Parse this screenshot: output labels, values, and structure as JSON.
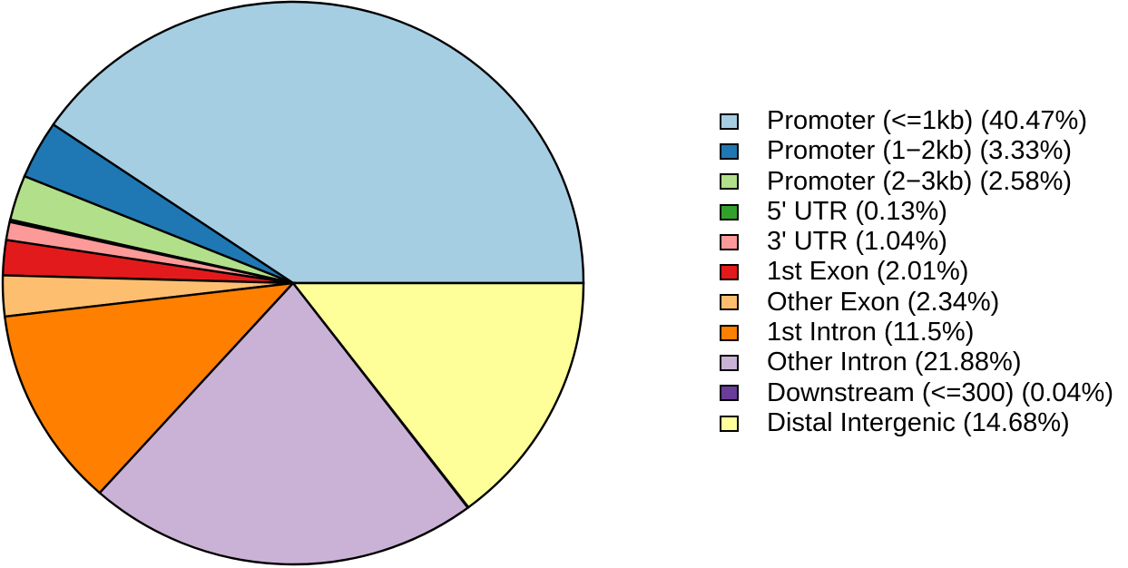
{
  "page": {
    "background": "#FFFFFF"
  },
  "chart_data": {
    "type": "pie",
    "title": "",
    "start_angle_deg": 0,
    "direction": "counterclockwise",
    "legend_position": "right",
    "grid": false,
    "border_color": "#000000",
    "slices": [
      {
        "label": "Promoter (<=1kb)",
        "value": 40.47,
        "color": "#A6CEE3",
        "legend_label": "Promoter (<=1kb) (40.47%)"
      },
      {
        "label": "Promoter (1−2kb)",
        "value": 3.33,
        "color": "#1F78B4",
        "legend_label": "Promoter (1−2kb) (3.33%)"
      },
      {
        "label": "Promoter (2−3kb)",
        "value": 2.58,
        "color": "#B2DF8A",
        "legend_label": "Promoter (2−3kb) (2.58%)"
      },
      {
        "label": "5' UTR",
        "value": 0.13,
        "color": "#33A02C",
        "legend_label": "5' UTR (0.13%)"
      },
      {
        "label": "3' UTR",
        "value": 1.04,
        "color": "#FB9A99",
        "legend_label": "3' UTR (1.04%)"
      },
      {
        "label": "1st Exon",
        "value": 2.01,
        "color": "#E31A1C",
        "legend_label": "1st Exon (2.01%)"
      },
      {
        "label": "Other Exon",
        "value": 2.34,
        "color": "#FDBF6F",
        "legend_label": "Other Exon (2.34%)"
      },
      {
        "label": "1st Intron",
        "value": 11.5,
        "color": "#FF7F00",
        "legend_label": "1st Intron (11.5%)"
      },
      {
        "label": "Other Intron",
        "value": 21.88,
        "color": "#CAB2D6",
        "legend_label": "Other Intron (21.88%)"
      },
      {
        "label": "Downstream (<=300)",
        "value": 0.04,
        "color": "#6A3D9A",
        "legend_label": "Downstream (<=300) (0.04%)"
      },
      {
        "label": "Distal Intergenic",
        "value": 14.68,
        "color": "#FFFF99",
        "legend_label": "Distal Intergenic (14.68%)"
      }
    ]
  }
}
